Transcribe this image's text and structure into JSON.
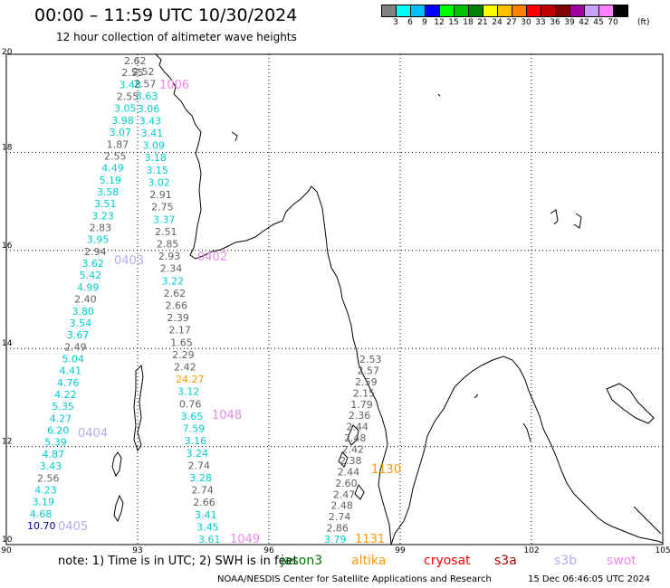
{
  "title": "00:00 – 11:59 UTC 10/30/2024",
  "subtitle": "12 hour collection of altimeter wave heights",
  "legend": {
    "colors": [
      "#808080",
      "#00ffff",
      "#00c0ff",
      "#0000ff",
      "#00ff00",
      "#00c000",
      "#008000",
      "#ffff00",
      "#ffc000",
      "#ff8000",
      "#ff0000",
      "#c00000",
      "#800000",
      "#a000a0",
      "#c8a0ff",
      "#ff80ff",
      "#000000"
    ],
    "ticks": [
      "3",
      "6",
      "9",
      "12",
      "15",
      "18",
      "21",
      "24",
      "27",
      "30",
      "33",
      "36",
      "39",
      "42",
      "45",
      "70"
    ],
    "unit": "(ft)"
  },
  "map": {
    "lon_ticks": [
      90,
      93,
      96,
      99,
      102,
      105
    ],
    "lat_ticks": [
      10,
      12,
      14,
      16,
      18,
      20
    ],
    "lon_range": [
      90,
      105
    ],
    "lat_range": [
      10,
      20
    ]
  },
  "colors": {
    "gray": "#606060",
    "cyan": "#00cccc",
    "navy": "#000088",
    "orange": "#ff9900",
    "lavender": "#b8a8ee",
    "pink": "#ee88ee"
  },
  "track_a": [
    "2.62",
    "2.55",
    "3.48",
    "2.55",
    "3.05",
    "3.98",
    "3.07",
    "1.87",
    "2.55",
    "4.49",
    "5.19",
    "3.58",
    "3.51",
    "3.23",
    "2.83",
    "3.95",
    "2.94",
    "3.62",
    "5.42",
    "4.99",
    "2.40",
    "3.80",
    "3.54",
    "3.67",
    "2.49",
    "5.04",
    "4.41",
    "4.76",
    "4.22",
    "5.35",
    "4.27",
    "6.20",
    "5.39",
    "4.87",
    "3.43",
    "2.56",
    "4.23",
    "3.19",
    "4.68",
    "10.70"
  ],
  "track_b": [
    "2.52",
    "2.57",
    "3.63",
    "3.06",
    "3.43",
    "3.41",
    "3.09",
    "3.18",
    "3.15",
    "3.02",
    "2.91",
    "2.75",
    "3.37",
    "2.51",
    "2.85",
    "2.93",
    "2.34",
    "3.22",
    "2.62",
    "2.66",
    "2.39",
    "2.17",
    "1.65",
    "2.29",
    "2.42",
    "24.27",
    "3.12",
    "0.76",
    "3.65",
    "7.59",
    "3.16",
    "3.24",
    "2.74",
    "3.28",
    "2.74",
    "2.66",
    "3.41",
    "3.45",
    "3.61"
  ],
  "track_c": [
    "2.53",
    "2.57",
    "2.59",
    "2.15",
    "1.79",
    "2.36",
    "2.44",
    "2.48",
    "2.42",
    "2.38",
    "2.44",
    "2.60",
    "2.47",
    "2.48",
    "2.74",
    "2.86",
    "3.79"
  ],
  "time_labels": {
    "t0403": "0403",
    "t0404": "0404",
    "t0405": "0405",
    "t1048": "1048",
    "t1049": "1049",
    "t1130": "1130",
    "t1131": "1131",
    "t0402": "0402",
    "t1006": "1006"
  },
  "note": "note:  1) Time is in UTC;  2) SWH is in feet",
  "missions": [
    "jason3",
    "altika",
    "cryosat",
    "s3a",
    "s3b",
    "swot"
  ],
  "footer": {
    "center": "NOAA/NESDIS Center for Satellite Applications and Research",
    "timestamp": "15 Dec 06:46:05 UTC 2024"
  }
}
